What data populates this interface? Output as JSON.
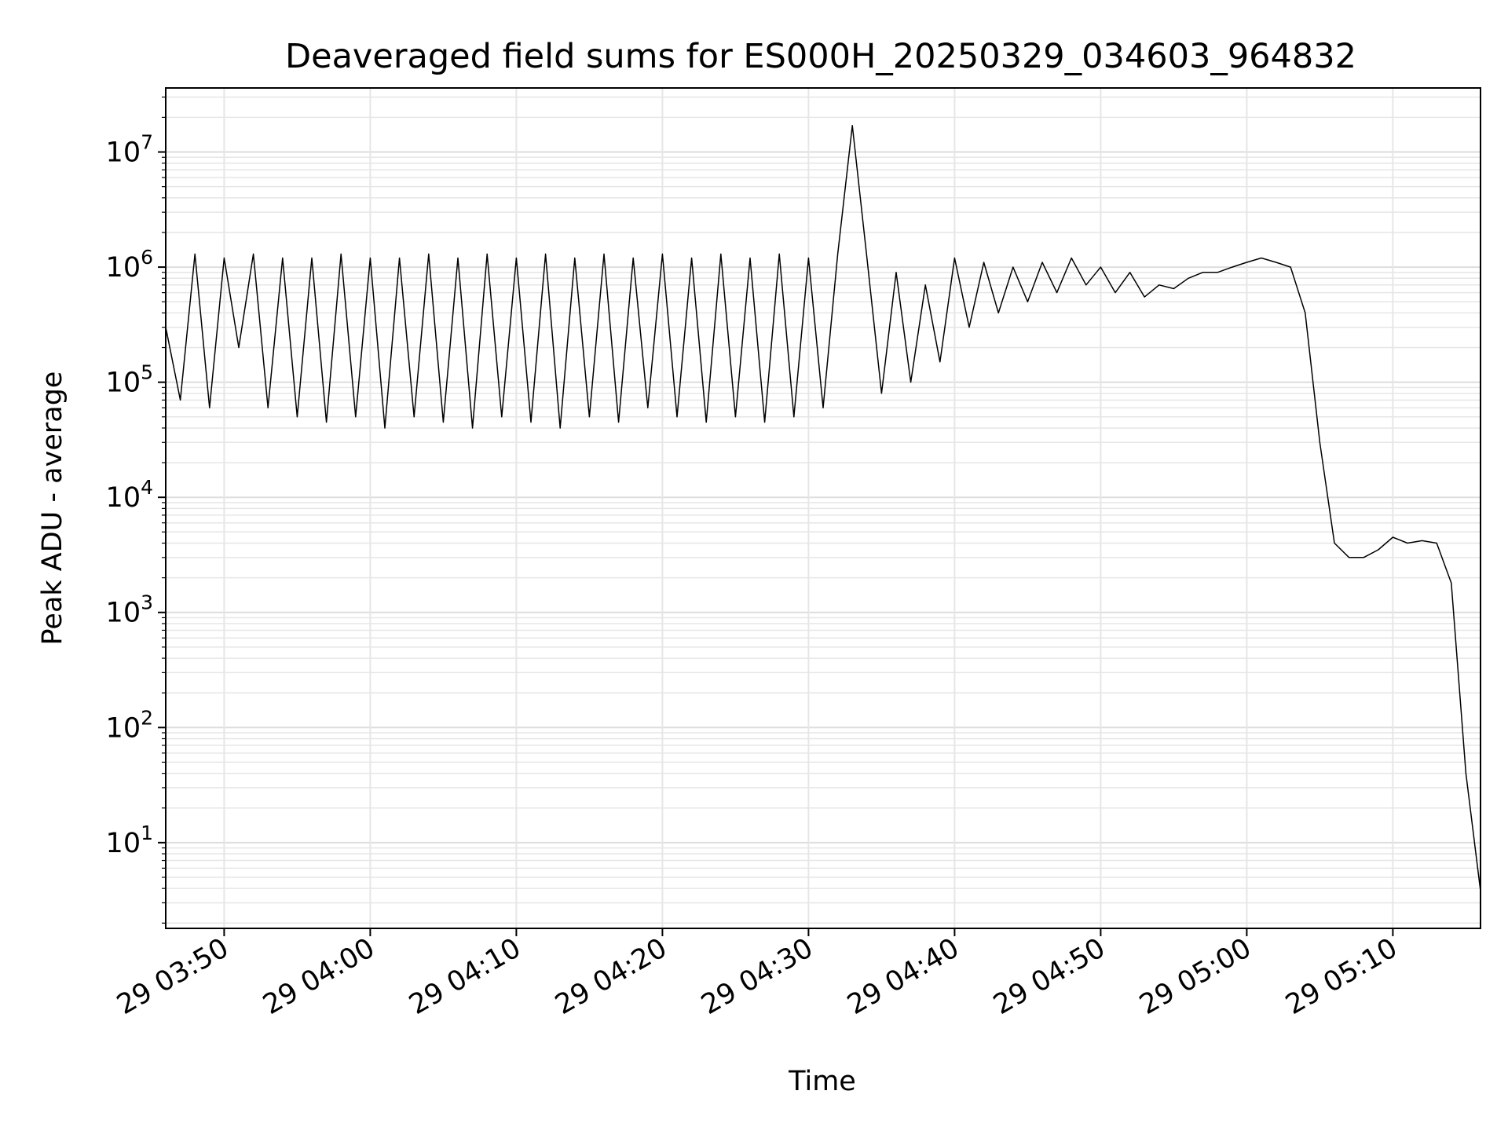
{
  "chart_data": {
    "type": "line",
    "title": "Deaveraged field sums for ES000H_20250329_034603_964832",
    "xlabel": "Time",
    "ylabel": "Peak ADU - average",
    "yscale": "log",
    "ylim": [
      1.8,
      36000000
    ],
    "xlim": [
      "29 03:46",
      "29 05:16"
    ],
    "grid": "on (major and minor)",
    "line_color": "#000000",
    "x_ticks": [
      "29 03:50",
      "29 04:00",
      "29 04:10",
      "29 04:20",
      "29 04:30",
      "29 04:40",
      "29 04:50",
      "29 05:00",
      "29 05:10"
    ],
    "y_ticks": [
      {
        "base": "10",
        "exp": "1",
        "value": 10
      },
      {
        "base": "10",
        "exp": "2",
        "value": 100
      },
      {
        "base": "10",
        "exp": "3",
        "value": 1000
      },
      {
        "base": "10",
        "exp": "4",
        "value": 10000
      },
      {
        "base": "10",
        "exp": "5",
        "value": 100000
      },
      {
        "base": "10",
        "exp": "6",
        "value": 1000000
      },
      {
        "base": "10",
        "exp": "7",
        "value": 10000000
      }
    ],
    "series": [
      {
        "x": [
          "29 03:46",
          "29 03:47",
          "29 03:48",
          "29 03:49",
          "29 03:50",
          "29 03:51",
          "29 03:52",
          "29 03:53",
          "29 03:54",
          "29 03:55",
          "29 03:56",
          "29 03:57",
          "29 03:58",
          "29 03:59",
          "29 04:00",
          "29 04:01",
          "29 04:02",
          "29 04:03",
          "29 04:04",
          "29 04:05",
          "29 04:06",
          "29 04:07",
          "29 04:08",
          "29 04:09",
          "29 04:10",
          "29 04:11",
          "29 04:12",
          "29 04:13",
          "29 04:14",
          "29 04:15",
          "29 04:16",
          "29 04:17",
          "29 04:18",
          "29 04:19",
          "29 04:20",
          "29 04:21",
          "29 04:22",
          "29 04:23",
          "29 04:24",
          "29 04:25",
          "29 04:26",
          "29 04:27",
          "29 04:28",
          "29 04:29",
          "29 04:30",
          "29 04:31",
          "29 04:32",
          "29 04:33",
          "29 04:34",
          "29 04:35",
          "29 04:36",
          "29 04:37",
          "29 04:38",
          "29 04:39",
          "29 04:40",
          "29 04:41",
          "29 04:42",
          "29 04:43",
          "29 04:44",
          "29 04:45",
          "29 04:46",
          "29 04:47",
          "29 04:48",
          "29 04:49",
          "29 04:50",
          "29 04:51",
          "29 04:52",
          "29 04:53",
          "29 04:54",
          "29 04:55",
          "29 04:56",
          "29 04:57",
          "29 04:58",
          "29 04:59",
          "29 05:00",
          "29 05:01",
          "29 05:02",
          "29 05:03",
          "29 05:04",
          "29 05:05",
          "29 05:06",
          "29 05:07",
          "29 05:08",
          "29 05:09",
          "29 05:10",
          "29 05:11",
          "29 05:12",
          "29 05:13",
          "29 05:14",
          "29 05:15",
          "29 05:16"
        ],
        "y": [
          300000,
          70000,
          1300000,
          60000,
          1200000,
          200000,
          1300000,
          60000,
          1200000,
          50000,
          1200000,
          45000,
          1300000,
          50000,
          1200000,
          40000,
          1200000,
          50000,
          1300000,
          45000,
          1200000,
          40000,
          1300000,
          50000,
          1200000,
          45000,
          1300000,
          40000,
          1200000,
          50000,
          1300000,
          45000,
          1200000,
          60000,
          1300000,
          50000,
          1200000,
          45000,
          1300000,
          50000,
          1200000,
          45000,
          1300000,
          50000,
          1200000,
          60000,
          1300000,
          17000000,
          1200000,
          80000,
          900000,
          100000,
          700000,
          150000,
          1200000,
          300000,
          1100000,
          400000,
          1000000,
          500000,
          1100000,
          600000,
          1200000,
          700000,
          1000000,
          600000,
          900000,
          550000,
          700000,
          650000,
          800000,
          900000,
          900000,
          1000000,
          1100000,
          1200000,
          1100000,
          1000000,
          400000,
          30000,
          4000,
          3000,
          3000,
          3500,
          4500,
          4000,
          4200,
          4000,
          1800,
          40,
          3.8
        ]
      }
    ]
  }
}
